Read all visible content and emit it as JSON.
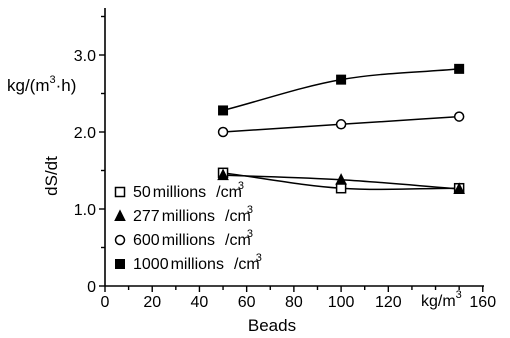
{
  "chart_data": {
    "type": "line",
    "title": "",
    "xlabel": "Beads",
    "x_unit_label": "kg/m",
    "x_unit_sup": "3",
    "ylabel": "dS/dt",
    "y_unit_prefix": "kg/(",
    "y_unit_m": "m",
    "y_unit_sup": "3",
    "y_unit_suffix": "·h)",
    "xlim": [
      0,
      160
    ],
    "ylim": [
      0,
      3.5
    ],
    "x_ticks": [
      0,
      20,
      40,
      60,
      80,
      100,
      120,
      160
    ],
    "x_tick_labels": [
      "0",
      "20",
      "40",
      "60",
      "80",
      "100",
      "120",
      "160"
    ],
    "y_ticks": [
      0,
      1.0,
      2.0,
      3.0
    ],
    "y_tick_labels": [
      "0",
      "1.0",
      "2.0",
      "3.0"
    ],
    "grid": false,
    "legend_position": "bottom-left",
    "series": [
      {
        "name": "50 millions /cm",
        "sup": "3",
        "label_num": "50",
        "label_word": "millions",
        "label_unit": "/cm",
        "marker": "square-open",
        "x": [
          50,
          100,
          150
        ],
        "y": [
          1.47,
          1.27,
          1.27
        ]
      },
      {
        "name": "277 millions /cm",
        "sup": "3",
        "label_num": "277",
        "label_word": "millions",
        "label_unit": "/cm",
        "marker": "triangle-filled",
        "x": [
          50,
          100,
          150
        ],
        "y": [
          1.44,
          1.38,
          1.26
        ]
      },
      {
        "name": "600 millions /cm",
        "sup": "3",
        "label_num": "600",
        "label_word": "millions",
        "label_unit": "/cm",
        "marker": "circle-open",
        "x": [
          50,
          100,
          150
        ],
        "y": [
          2.0,
          2.1,
          2.2
        ]
      },
      {
        "name": "1000 millions /cm",
        "sup": "3",
        "label_num": "1000",
        "label_word": "millions",
        "label_unit": "/cm",
        "marker": "square-filled",
        "x": [
          50,
          100,
          150
        ],
        "y": [
          2.28,
          2.68,
          2.82
        ]
      }
    ]
  }
}
